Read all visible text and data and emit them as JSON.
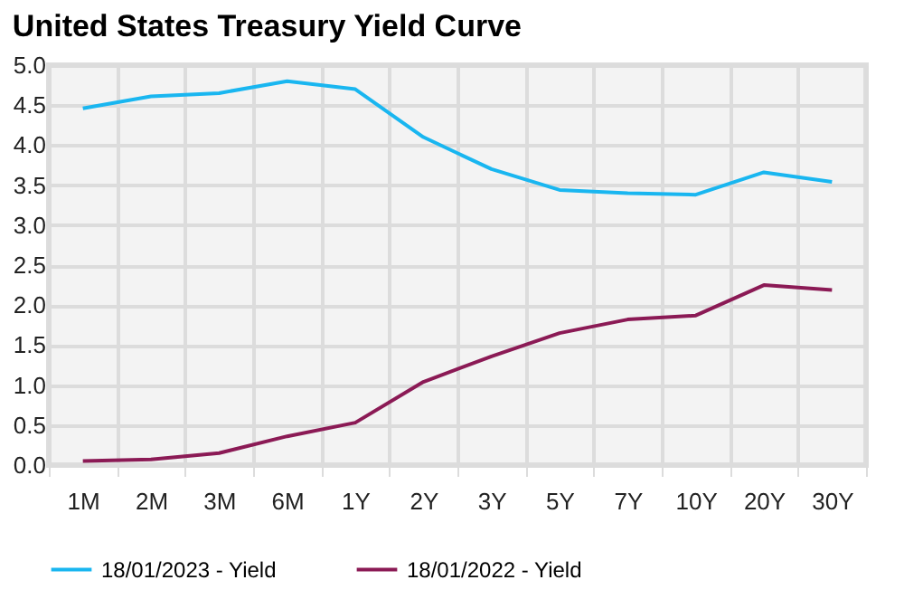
{
  "chart_data": {
    "type": "line",
    "title": "United States Treasury Yield Curve",
    "categories": [
      "1M",
      "2M",
      "3M",
      "6M",
      "1Y",
      "2Y",
      "3Y",
      "5Y",
      "7Y",
      "10Y",
      "20Y",
      "30Y"
    ],
    "series": [
      {
        "name": "18/01/2023 - Yield",
        "color": "#19b6f0",
        "values": [
          4.46,
          4.61,
          4.65,
          4.8,
          4.7,
          4.1,
          3.7,
          3.44,
          3.4,
          3.38,
          3.66,
          3.54
        ]
      },
      {
        "name": "18/01/2022 - Yield",
        "color": "#8b1a55",
        "values": [
          0.05,
          0.07,
          0.15,
          0.36,
          0.53,
          1.04,
          1.36,
          1.65,
          1.82,
          1.87,
          2.25,
          2.19
        ]
      }
    ],
    "ylim": [
      0,
      5
    ],
    "yticks": [
      {
        "value": 0,
        "label": "0.0"
      },
      0.5,
      {
        "value": 1,
        "label": "1.0"
      },
      1.5,
      {
        "value": 2,
        "label": "2.0"
      },
      2.5,
      {
        "value": 3,
        "label": "3.0"
      },
      3.5,
      {
        "value": 4,
        "label": "4.0"
      },
      4.5,
      {
        "value": 5,
        "label": "5.0"
      }
    ],
    "grid": true,
    "legend": "bottom",
    "marker": "none",
    "line_style": "solid"
  }
}
